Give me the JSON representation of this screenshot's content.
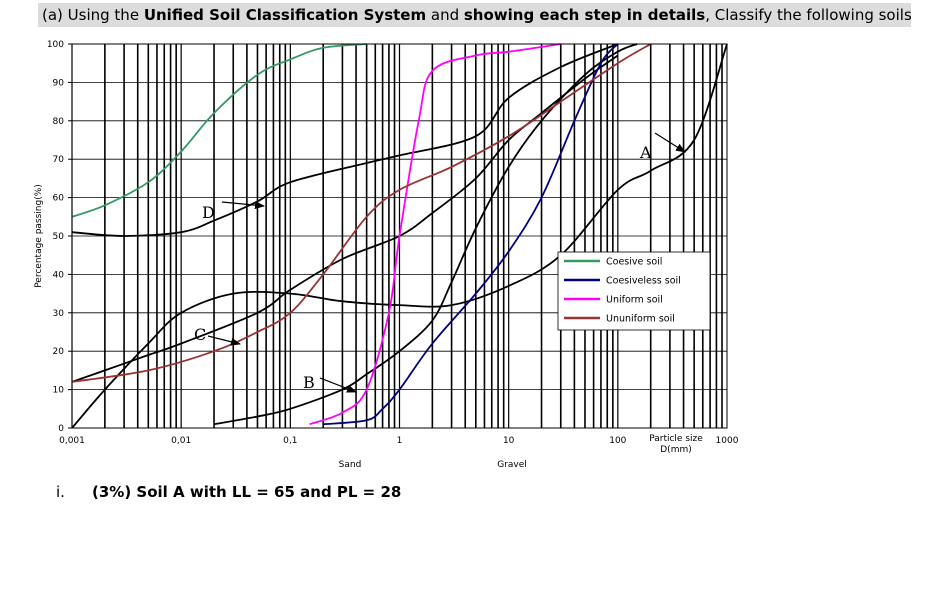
{
  "question": {
    "prefix": "(a) ",
    "t1": "Using the ",
    "t2": "Unified Soil Classification System",
    "t3": " and ",
    "t4": "showing each step in details",
    "t5": ", Classify the following soils:"
  },
  "part": {
    "number": "i.",
    "text": "(3%) Soil A with LL = 65 and PL = 28"
  },
  "chart_data": {
    "type": "line",
    "ylabel": "Percentage passing(%)",
    "xlabel": "Particle size D(mm)",
    "xscale": "log",
    "xlim": [
      0.001,
      1000
    ],
    "ylim": [
      0,
      100
    ],
    "grid": true,
    "x_tick_labels": [
      "0,001",
      "0,01",
      "0,1",
      "1",
      "10",
      "100",
      "1000"
    ],
    "y_tick_labels": [
      "0",
      "10",
      "20",
      "30",
      "40",
      "50",
      "60",
      "70",
      "80",
      "90",
      "100"
    ],
    "regions": [
      "Sand",
      "Gravel"
    ],
    "legend_position": "center-right",
    "series": [
      {
        "name": "Coesive soil",
        "color": "#339966",
        "points": [
          [
            0.001,
            55
          ],
          [
            0.002,
            58
          ],
          [
            0.005,
            64
          ],
          [
            0.01,
            72
          ],
          [
            0.02,
            82
          ],
          [
            0.05,
            92
          ],
          [
            0.1,
            96
          ],
          [
            0.2,
            99
          ],
          [
            0.5,
            100
          ]
        ]
      },
      {
        "name": "Coesiveless soil",
        "color": "#000080",
        "points": [
          [
            0.2,
            1
          ],
          [
            0.5,
            2
          ],
          [
            0.7,
            5
          ],
          [
            1,
            10
          ],
          [
            2,
            22
          ],
          [
            5,
            35
          ],
          [
            10,
            46
          ],
          [
            20,
            60
          ],
          [
            40,
            80
          ],
          [
            70,
            95
          ],
          [
            100,
            100
          ]
        ]
      },
      {
        "name": "Uniform soil",
        "color": "#ff00ff",
        "points": [
          [
            0.15,
            1
          ],
          [
            0.3,
            4
          ],
          [
            0.5,
            10
          ],
          [
            0.8,
            30
          ],
          [
            1,
            50
          ],
          [
            1.5,
            80
          ],
          [
            2,
            93
          ],
          [
            5,
            97
          ],
          [
            10,
            98
          ],
          [
            30,
            100
          ]
        ]
      },
      {
        "name": "Ununiform soil",
        "color": "#993333",
        "points": [
          [
            0.001,
            12
          ],
          [
            0.005,
            15
          ],
          [
            0.02,
            20
          ],
          [
            0.05,
            25
          ],
          [
            0.1,
            30
          ],
          [
            0.2,
            40
          ],
          [
            0.5,
            55
          ],
          [
            1,
            62
          ],
          [
            3,
            68
          ],
          [
            10,
            76
          ],
          [
            30,
            85
          ],
          [
            100,
            95
          ],
          [
            200,
            100
          ]
        ]
      }
    ],
    "unlabeled_curves": [
      {
        "label": "A",
        "color": "#000000",
        "points": [
          [
            0.001,
            0
          ],
          [
            0.002,
            10
          ],
          [
            0.005,
            22
          ],
          [
            0.01,
            30
          ],
          [
            0.03,
            35
          ],
          [
            0.1,
            35
          ],
          [
            0.3,
            33
          ],
          [
            1,
            32
          ],
          [
            3,
            32
          ],
          [
            10,
            37
          ],
          [
            30,
            45
          ],
          [
            100,
            62
          ],
          [
            200,
            67
          ],
          [
            500,
            75
          ],
          [
            1000,
            100
          ]
        ]
      },
      {
        "label": "B",
        "color": "#000000",
        "points": [
          [
            0.02,
            1
          ],
          [
            0.05,
            3
          ],
          [
            0.1,
            5
          ],
          [
            0.3,
            10
          ],
          [
            0.5,
            14
          ],
          [
            1,
            20
          ],
          [
            2,
            28
          ],
          [
            3,
            38
          ],
          [
            5,
            52
          ],
          [
            10,
            68
          ],
          [
            20,
            80
          ],
          [
            50,
            92
          ],
          [
            100,
            98
          ],
          [
            150,
            100
          ]
        ]
      },
      {
        "label": "C",
        "color": "#000000",
        "points": [
          [
            0.001,
            51
          ],
          [
            0.003,
            50
          ],
          [
            0.01,
            51
          ],
          [
            0.02,
            54
          ],
          [
            0.05,
            59
          ],
          [
            0.1,
            64
          ],
          [
            0.5,
            69
          ],
          [
            1,
            71
          ],
          [
            5,
            76
          ],
          [
            10,
            86
          ],
          [
            30,
            94
          ],
          [
            100,
            100
          ]
        ]
      },
      {
        "label": "D",
        "color": "#000000",
        "points": [
          [
            0.001,
            12
          ],
          [
            0.002,
            15
          ],
          [
            0.005,
            19
          ],
          [
            0.01,
            22
          ],
          [
            0.05,
            30
          ],
          [
            0.1,
            36
          ],
          [
            0.3,
            44
          ],
          [
            1,
            50
          ],
          [
            2,
            56
          ],
          [
            5,
            65
          ],
          [
            10,
            75
          ],
          [
            20,
            82
          ],
          [
            50,
            91
          ],
          [
            100,
            97
          ]
        ]
      }
    ],
    "annotations": [
      "A",
      "B",
      "C",
      "D"
    ]
  }
}
